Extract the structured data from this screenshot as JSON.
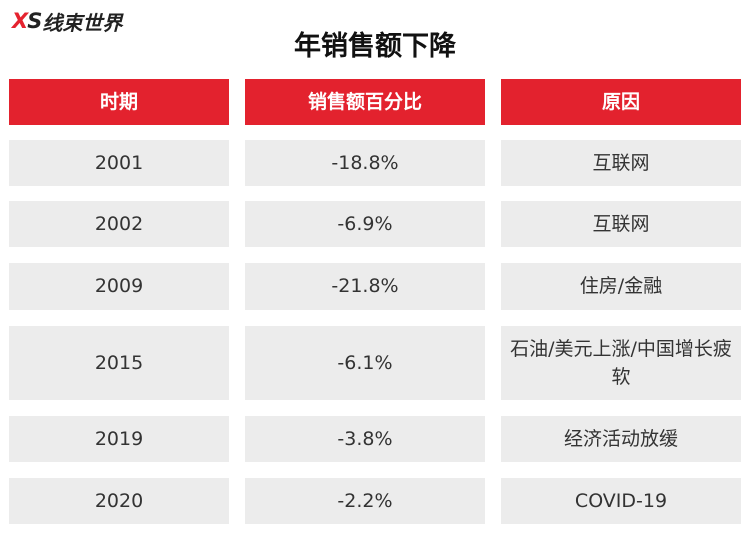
{
  "logo": {
    "x": "X",
    "s": "S",
    "cn": "线束世界"
  },
  "title": "年销售额下降",
  "table": {
    "headers": [
      "时期",
      "销售额百分比",
      "原因"
    ],
    "rows": [
      [
        "2001",
        "-18.8%",
        "互联网"
      ],
      [
        "2002",
        "-6.9%",
        "互联网"
      ],
      [
        "2009",
        "-21.8%",
        "住房/金融"
      ],
      [
        "2015",
        "-6.1%",
        "石油/美元上涨/中国增长疲软"
      ],
      [
        "2019",
        "-3.8%",
        "经济活动放缓"
      ],
      [
        "2020",
        "-2.2%",
        "COVID-19"
      ]
    ]
  },
  "colors": {
    "header_bg": "#e3222e",
    "cell_bg": "#ececec"
  }
}
